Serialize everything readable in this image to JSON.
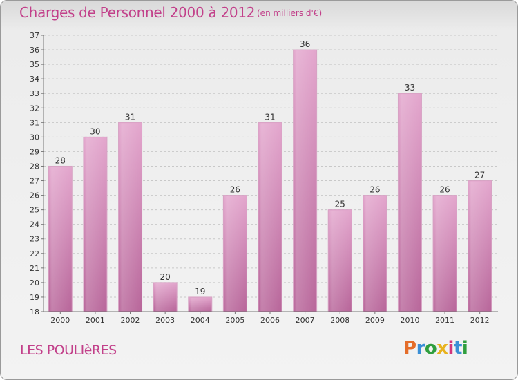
{
  "header": {
    "title": "Charges de Personnel 2000 à 2012",
    "subtitle": "(en milliers d'€)"
  },
  "footer": {
    "place": "LES POULIèRES",
    "logo_letters": [
      {
        "ch": "P",
        "color": "#e46d2a"
      },
      {
        "ch": "r",
        "color": "#3a8fd6"
      },
      {
        "ch": "o",
        "color": "#2f9e3e"
      },
      {
        "ch": "x",
        "color": "#e8b21d"
      },
      {
        "ch": "i",
        "color": "#d2357c"
      },
      {
        "ch": "t",
        "color": "#3a8fd6"
      },
      {
        "ch": "i",
        "color": "#2f9e3e"
      }
    ]
  },
  "colors": {
    "bar_top": "#e3a6cd",
    "bar_bottom": "#b8669a",
    "title": "#c2408a"
  },
  "chart_data": {
    "type": "bar",
    "categories": [
      "2000",
      "2001",
      "2002",
      "2003",
      "2004",
      "2005",
      "2006",
      "2007",
      "2008",
      "2009",
      "2010",
      "2011",
      "2012"
    ],
    "values": [
      28,
      30,
      31,
      20,
      19,
      26,
      31,
      36,
      25,
      26,
      33,
      26,
      27
    ],
    "ylim": [
      18,
      37
    ],
    "yticks": [
      18,
      19,
      20,
      21,
      22,
      23,
      24,
      25,
      26,
      27,
      28,
      29,
      30,
      31,
      32,
      33,
      34,
      35,
      36,
      37
    ],
    "grid": true,
    "show_data_labels": true
  }
}
